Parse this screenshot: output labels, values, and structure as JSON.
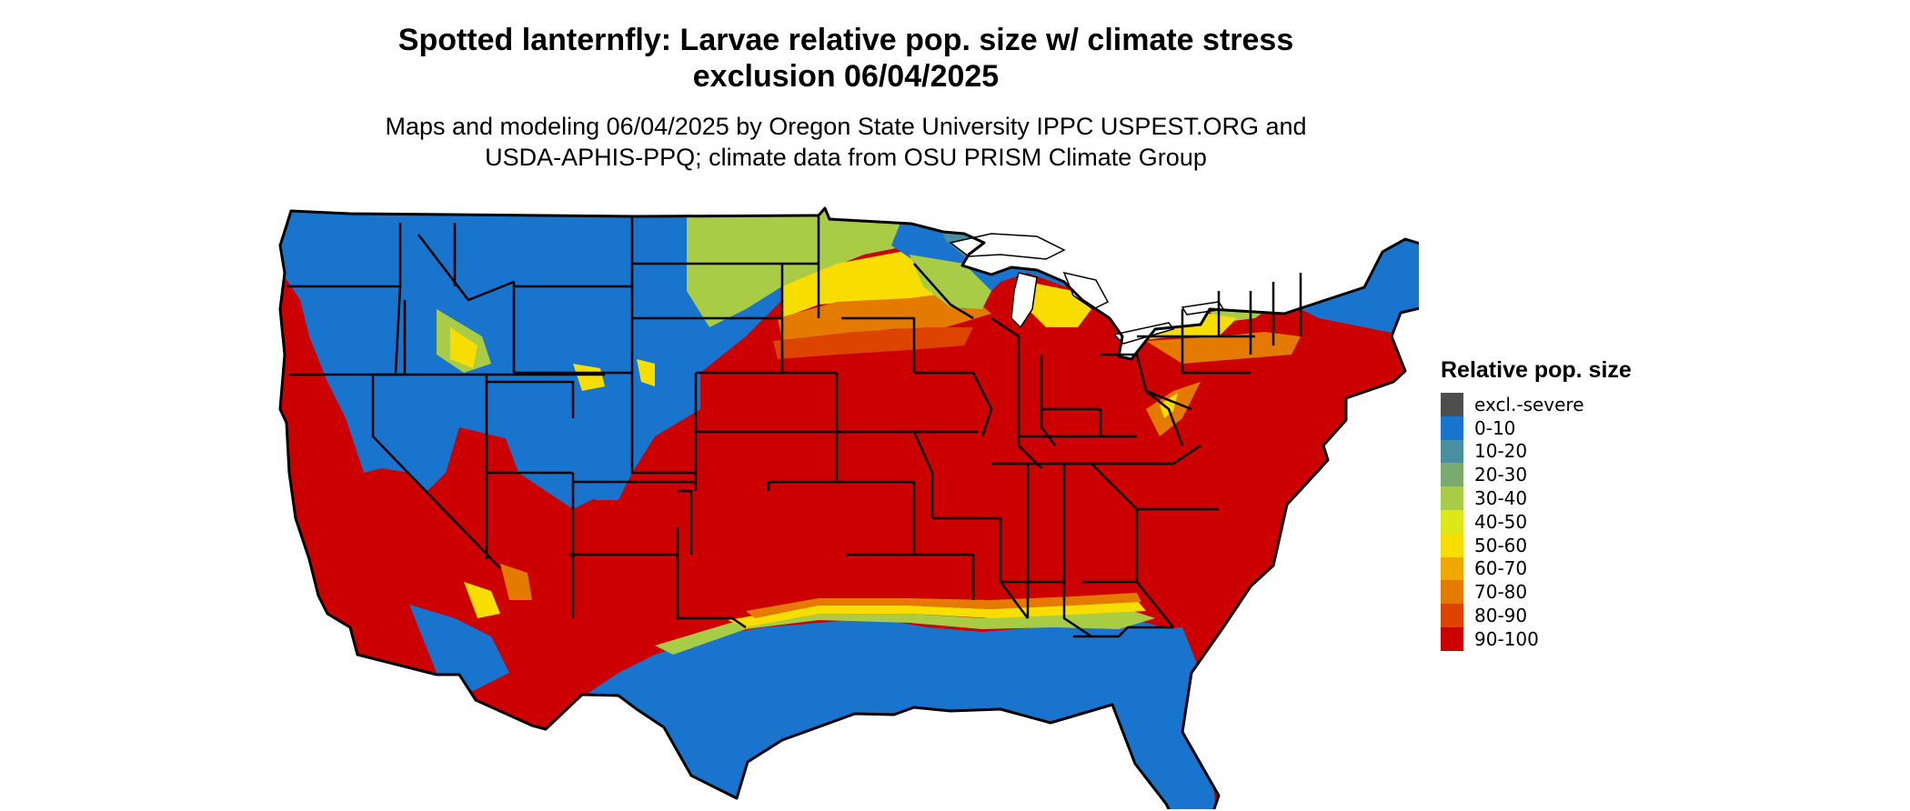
{
  "title": {
    "line1": "Spotted lanternfly: Larvae relative pop. size w/ climate stress",
    "line2": "exclusion 06/04/2025"
  },
  "subtitle": {
    "line1": "Maps and modeling 06/04/2025 by Oregon State University IPPC USPEST.ORG and",
    "line2": "USDA-APHIS-PPQ; climate data from OSU PRISM Climate Group"
  },
  "legend": {
    "title": "Relative pop. size",
    "items": [
      {
        "label": "excl.-severe",
        "color": "#4d4d4d"
      },
      {
        "label": "0-10",
        "color": "#1874cd"
      },
      {
        "label": "10-20",
        "color": "#4a8fa0"
      },
      {
        "label": "20-30",
        "color": "#7aab6e"
      },
      {
        "label": "30-40",
        "color": "#a9cc46"
      },
      {
        "label": "40-50",
        "color": "#dde81a"
      },
      {
        "label": "50-60",
        "color": "#f7dd00"
      },
      {
        "label": "60-70",
        "color": "#f0a800"
      },
      {
        "label": "70-80",
        "color": "#e57a00"
      },
      {
        "label": "80-90",
        "color": "#dc4400"
      },
      {
        "label": "90-100",
        "color": "#cc0000"
      }
    ]
  },
  "map": {
    "region": "Continental United States",
    "outline_color": "#000000"
  }
}
